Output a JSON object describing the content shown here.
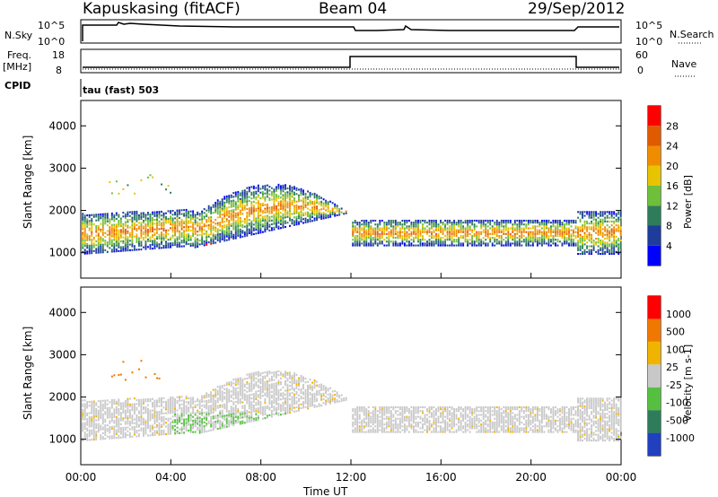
{
  "header": {
    "station": "Kapuskasing (fitACF)",
    "beam": "Beam 04",
    "date": "29/Sep/2012"
  },
  "panels": {
    "nsky_label": "N.Sky",
    "nsearch_label": "N.Search",
    "freq_label": "Freq.",
    "freq_unit": "[MHz]",
    "nave_label": "Nave",
    "cpid_label": "CPID",
    "cpid_value": "tau (fast) 503",
    "noise_ticks_left": [
      "10^5",
      "10^0"
    ],
    "noise_ticks_right": [
      "10^5",
      "10^0"
    ],
    "freq_ticks_left": [
      "18",
      "8"
    ],
    "nave_ticks_right": [
      "60",
      "0"
    ]
  },
  "colors": {
    "power": [
      "#0000ff",
      "#1e3c9b",
      "#2e7d5a",
      "#6fbf3a",
      "#e8c400",
      "#f08c00",
      "#e05a00",
      "#ff0000"
    ],
    "velocity": [
      "#2040c0",
      "#2e7d5a",
      "#55c040",
      "#c8c8c8",
      "#f0b400",
      "#f07800",
      "#ff0000"
    ]
  },
  "chart_data": [
    {
      "type": "heatmap",
      "title": "",
      "xlabel": "Time UT",
      "ylabel": "Slant Range [km]",
      "xticks": [
        "00:00",
        "04:00",
        "08:00",
        "12:00",
        "16:00",
        "20:00",
        "00:00"
      ],
      "xlim": [
        0,
        24
      ],
      "ylim": [
        400,
        4600
      ],
      "yticks": [
        1000,
        2000,
        3000,
        4000
      ],
      "colorbar_label": "Power [dB]",
      "colorbar_ticks": [
        "28",
        "24",
        "20",
        "16",
        "12",
        "8",
        "4"
      ],
      "colorbar_range": [
        0,
        32
      ]
    },
    {
      "type": "heatmap",
      "title": "",
      "xlabel": "Time UT",
      "ylabel": "Slant Range [km]",
      "xticks": [
        "00:00",
        "04:00",
        "08:00",
        "12:00",
        "16:00",
        "20:00",
        "00:00"
      ],
      "xlim": [
        0,
        24
      ],
      "ylim": [
        400,
        4600
      ],
      "yticks": [
        1000,
        2000,
        3000,
        4000
      ],
      "colorbar_label": "Velocity [m s-1]",
      "colorbar_ticks": [
        "1000",
        "500",
        "100",
        "25",
        "-25",
        "-100",
        "-500",
        "-1000"
      ]
    }
  ]
}
